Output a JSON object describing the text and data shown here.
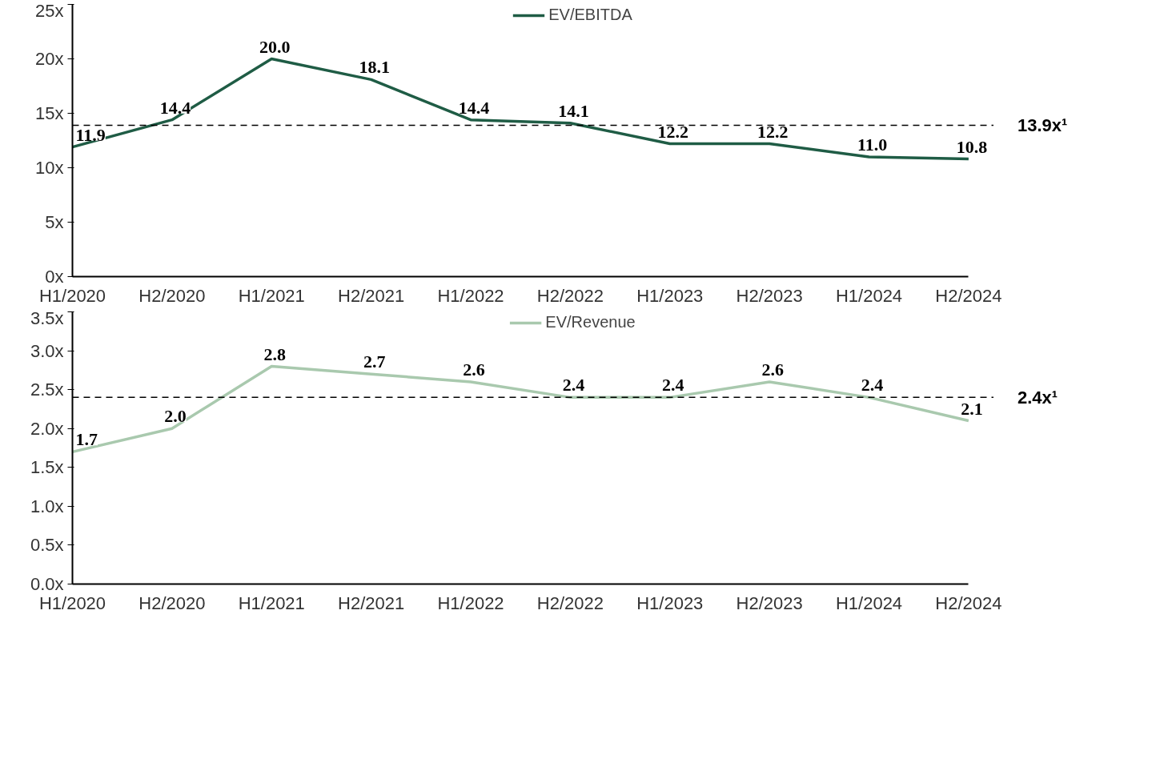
{
  "chart_data": [
    {
      "type": "line",
      "categories": [
        "H1/2020",
        "H2/2020",
        "H1/2021",
        "H2/2021",
        "H1/2022",
        "H2/2022",
        "H1/2023",
        "H2/2023",
        "H1/2024",
        "H2/2024"
      ],
      "series": [
        {
          "name": "EV/EBITDA",
          "color": "#1f5c45",
          "values": [
            11.9,
            14.4,
            20.0,
            18.1,
            14.4,
            14.1,
            12.2,
            12.2,
            11.0,
            10.8
          ],
          "value_labels": [
            "11.9",
            "14.4",
            "20.0",
            "18.1",
            "14.4",
            "14.1",
            "12.2",
            "12.2",
            "11.0",
            "10.8"
          ]
        }
      ],
      "ylim": [
        0,
        25
      ],
      "yticks": [
        {
          "value": 0,
          "label": "0x"
        },
        {
          "value": 5,
          "label": "5x"
        },
        {
          "value": 10,
          "label": "10x"
        },
        {
          "value": 15,
          "label": "15x"
        },
        {
          "value": 20,
          "label": "20x"
        },
        {
          "value": 25,
          "label": "25x"
        }
      ],
      "ref_lines": [
        {
          "axis": "y",
          "value": 13.9,
          "label": "13.9x¹",
          "line_style": "dashed",
          "color": "#000000"
        }
      ],
      "legend": "top",
      "grid": false,
      "marker": "none",
      "line_style": "solid"
    },
    {
      "type": "line",
      "categories": [
        "H1/2020",
        "H2/2020",
        "H1/2021",
        "H2/2021",
        "H1/2022",
        "H2/2022",
        "H1/2023",
        "H2/2023",
        "H1/2024",
        "H2/2024"
      ],
      "series": [
        {
          "name": "EV/Revenue",
          "color": "#a9c9ae",
          "values": [
            1.7,
            2.0,
            2.8,
            2.7,
            2.6,
            2.4,
            2.4,
            2.6,
            2.4,
            2.1
          ],
          "value_labels": [
            "1.7",
            "2.0",
            "2.8",
            "2.7",
            "2.6",
            "2.4",
            "2.4",
            "2.6",
            "2.4",
            "2.1"
          ]
        }
      ],
      "ylim": [
        0,
        3.5
      ],
      "yticks": [
        {
          "value": 0,
          "label": "0.0x"
        },
        {
          "value": 0.5,
          "label": "0.5x"
        },
        {
          "value": 1,
          "label": "1.0x"
        },
        {
          "value": 1.5,
          "label": "1.5x"
        },
        {
          "value": 2,
          "label": "2.0x"
        },
        {
          "value": 2.5,
          "label": "2.5x"
        },
        {
          "value": 3,
          "label": "3.0x"
        },
        {
          "value": 3.5,
          "label": "3.5x"
        }
      ],
      "ref_lines": [
        {
          "axis": "y",
          "value": 2.4,
          "label": "2.4x¹",
          "line_style": "dashed",
          "color": "#000000"
        }
      ],
      "legend": "top",
      "grid": false,
      "marker": "none",
      "line_style": "solid"
    }
  ]
}
